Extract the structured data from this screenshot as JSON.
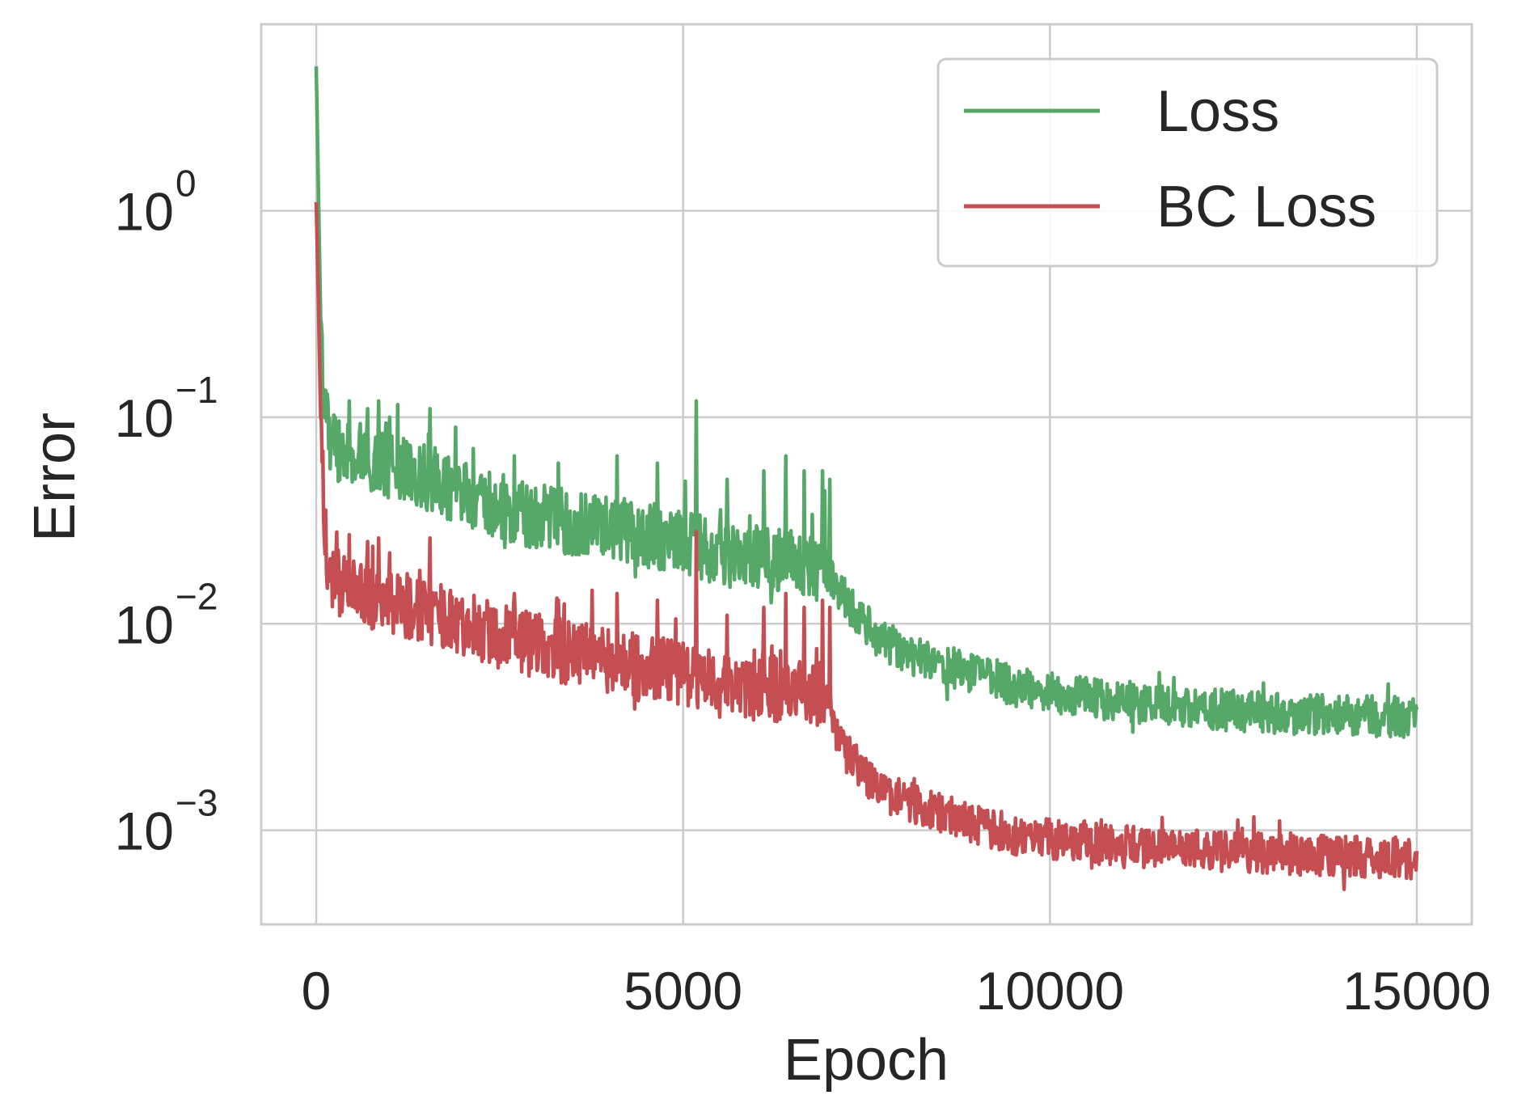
{
  "chart_data": {
    "type": "line",
    "xlabel": "Epoch",
    "ylabel": "Error",
    "xlim": [
      -750,
      15750
    ],
    "ylim": [
      0.00035,
      8.0
    ],
    "yscale": "log",
    "grid": true,
    "legend_position": "top-right",
    "xticks": [
      {
        "value": 0,
        "label": "0"
      },
      {
        "value": 5000,
        "label": "5000"
      },
      {
        "value": 10000,
        "label": "10000"
      },
      {
        "value": 15000,
        "label": "15000"
      }
    ],
    "yticks": [
      {
        "value": 1,
        "base": "10",
        "exp": "0"
      },
      {
        "value": 0.1,
        "base": "10",
        "exp": "−1"
      },
      {
        "value": 0.01,
        "base": "10",
        "exp": "−2"
      },
      {
        "value": 0.001,
        "base": "10",
        "exp": "−3"
      }
    ],
    "series": [
      {
        "name": "Loss",
        "color": "#55a868",
        "x": [
          0,
          30,
          60,
          100,
          150,
          200,
          300,
          400,
          500,
          600,
          700,
          800,
          900,
          1000,
          1200,
          1400,
          1600,
          1700,
          1800,
          2000,
          2300,
          2600,
          3000,
          3500,
          4000,
          4500,
          5000,
          5200,
          5300,
          5500,
          6000,
          6500,
          6900,
          7000,
          7100,
          7300,
          7500,
          7800,
          8000,
          8500,
          9000,
          9500,
          10000,
          11000,
          12000,
          13000,
          14000,
          15000
        ],
        "y": [
          5.0,
          1.2,
          0.3,
          0.12,
          0.085,
          0.08,
          0.07,
          0.068,
          0.066,
          0.064,
          0.062,
          0.06,
          0.058,
          0.057,
          0.055,
          0.052,
          0.05,
          0.047,
          0.045,
          0.042,
          0.039,
          0.036,
          0.033,
          0.031,
          0.029,
          0.027,
          0.025,
          0.024,
          0.023,
          0.022,
          0.021,
          0.02,
          0.019,
          0.018,
          0.015,
          0.012,
          0.0095,
          0.008,
          0.0074,
          0.0064,
          0.0056,
          0.005,
          0.0046,
          0.0042,
          0.0039,
          0.0037,
          0.0036,
          0.0035
        ],
        "spikes": [
          [
            450,
            0.12
          ],
          [
            700,
            0.11
          ],
          [
            850,
            0.12
          ],
          [
            1000,
            0.1
          ],
          [
            1550,
            0.11
          ],
          [
            2700,
            0.065
          ],
          [
            3300,
            0.06
          ],
          [
            4100,
            0.065
          ],
          [
            4650,
            0.06
          ],
          [
            5180,
            0.12
          ],
          [
            5600,
            0.05
          ],
          [
            6100,
            0.055
          ],
          [
            6400,
            0.065
          ],
          [
            6650,
            0.055
          ],
          [
            6900,
            0.055
          ],
          [
            7000,
            0.05
          ]
        ]
      },
      {
        "name": "BC Loss",
        "color": "#c44e52",
        "x": [
          0,
          30,
          60,
          100,
          150,
          200,
          300,
          400,
          500,
          600,
          700,
          800,
          900,
          1000,
          1200,
          1400,
          1600,
          1700,
          1800,
          2000,
          2300,
          2600,
          3000,
          3500,
          4000,
          4500,
          5000,
          5200,
          5300,
          5500,
          6000,
          6500,
          6900,
          7000,
          7100,
          7300,
          7500,
          7800,
          8000,
          8500,
          9000,
          9500,
          10000,
          11000,
          12000,
          13000,
          14000,
          15000
        ],
        "y": [
          1.1,
          0.35,
          0.1,
          0.04,
          0.02,
          0.017,
          0.016,
          0.015,
          0.0145,
          0.014,
          0.0138,
          0.0135,
          0.013,
          0.0128,
          0.0122,
          0.0118,
          0.0112,
          0.0108,
          0.0104,
          0.0098,
          0.0092,
          0.0086,
          0.0078,
          0.0072,
          0.0067,
          0.0062,
          0.0057,
          0.0055,
          0.0053,
          0.0051,
          0.0049,
          0.0047,
          0.0045,
          0.0043,
          0.0028,
          0.0022,
          0.0018,
          0.0015,
          0.0014,
          0.0012,
          0.00105,
          0.00095,
          0.0009,
          0.00084,
          0.0008,
          0.00077,
          0.00075,
          0.00073
        ],
        "spikes": [
          [
            450,
            0.027
          ],
          [
            700,
            0.025
          ],
          [
            850,
            0.026
          ],
          [
            1000,
            0.022
          ],
          [
            1550,
            0.026
          ],
          [
            2700,
            0.014
          ],
          [
            3300,
            0.013
          ],
          [
            4100,
            0.014
          ],
          [
            4650,
            0.013
          ],
          [
            5180,
            0.028
          ],
          [
            5600,
            0.011
          ],
          [
            6100,
            0.012
          ],
          [
            6400,
            0.014
          ],
          [
            6650,
            0.012
          ],
          [
            6900,
            0.013
          ],
          [
            7000,
            0.012
          ]
        ]
      }
    ]
  }
}
